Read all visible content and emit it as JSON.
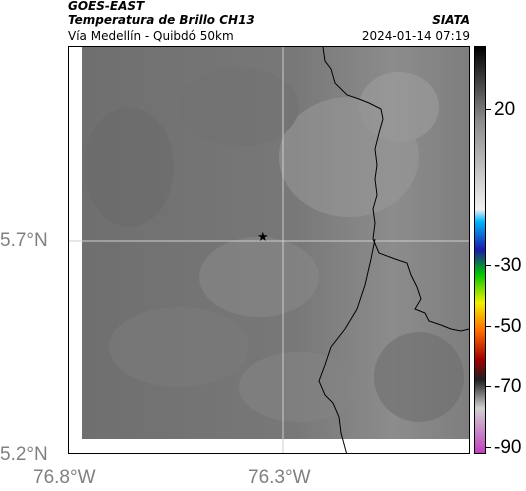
{
  "header": {
    "satellite": "GOES-EAST",
    "product": "Temperatura de Brillo CH13",
    "organization": "SIATA",
    "region": "Vía Medellín - Quibdó 50km",
    "datetime": "2024-01-14 07:19"
  },
  "map": {
    "lat_labels": [
      "5.7°N",
      "5.2°N"
    ],
    "lon_labels": [
      "76.8°W",
      "76.3°W"
    ],
    "marker_icon": "star-icon",
    "boundary_color": "#000000",
    "gridline_color": "#cfcfcf"
  },
  "colorbar": {
    "tick_labels": [
      "20",
      "-30",
      "-50",
      "-70",
      "-90"
    ],
    "colors": [
      "#000000",
      "#8a8a8a",
      "#f0f0f0",
      "#00b4ff",
      "#1a1aa8",
      "#00c800",
      "#f0f000",
      "#ff6a00",
      "#a00000",
      "#202020",
      "#d0d0d0",
      "#c040c0"
    ]
  }
}
